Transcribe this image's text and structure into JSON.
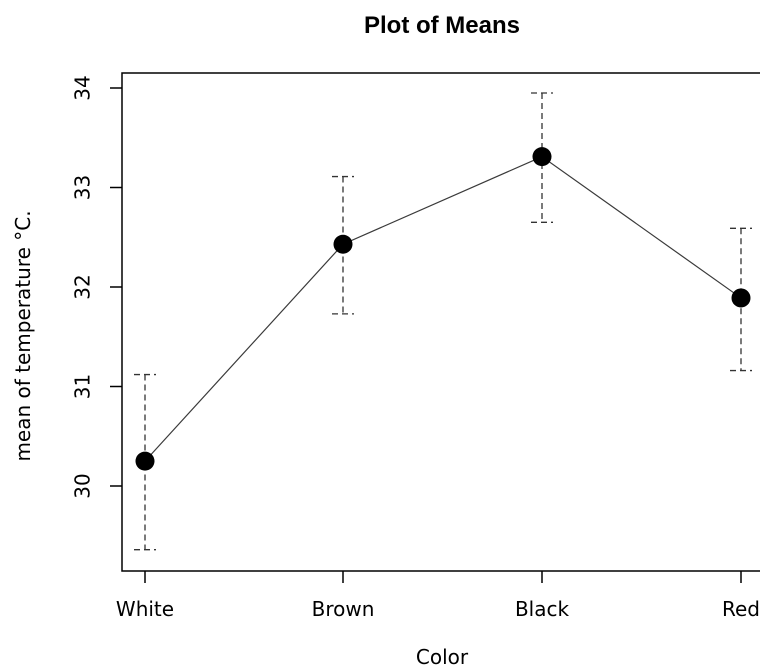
{
  "chart_data": {
    "type": "line",
    "title": "Plot of Means",
    "xlabel": "Color",
    "ylabel": "mean of temperature °C.",
    "categories": [
      "White",
      "Brown",
      "Black",
      "Red"
    ],
    "values": [
      30.25,
      32.43,
      33.31,
      31.89
    ],
    "error_upper": [
      31.12,
      33.11,
      33.95,
      32.59
    ],
    "error_lower": [
      29.36,
      31.73,
      32.65,
      31.16
    ],
    "yticks": [
      30,
      31,
      32,
      33,
      34
    ],
    "ylim": [
      29.15,
      34.15
    ],
    "grid": false,
    "legend": "none",
    "colors": {
      "line": "#3a3a3a",
      "point": "#000000",
      "error_bar": "#333333",
      "axis": "#000000"
    }
  }
}
